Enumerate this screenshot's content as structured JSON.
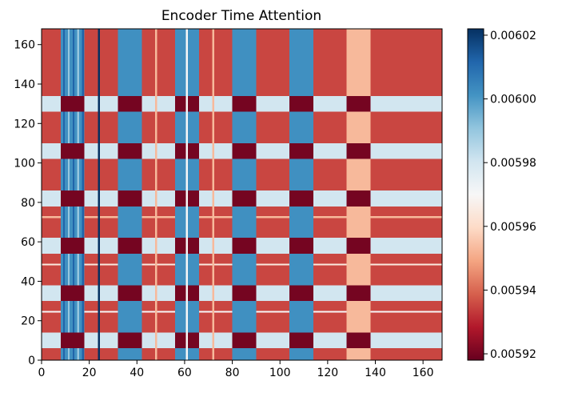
{
  "chart_data": {
    "type": "heatmap",
    "title": "Encoder Time Attention",
    "xlabel": "",
    "ylabel": "",
    "xlim": [
      0,
      168
    ],
    "ylim": [
      0,
      168
    ],
    "x_ticks": [
      "0",
      "20",
      "40",
      "60",
      "80",
      "100",
      "120",
      "140",
      "160"
    ],
    "y_ticks": [
      "0",
      "20",
      "40",
      "60",
      "80",
      "100",
      "120",
      "140",
      "160"
    ],
    "colormap": "RdBu",
    "colorbar": {
      "range": [
        0.005918,
        0.006022
      ],
      "ticks": [
        "0.00592",
        "0.00594",
        "0.00596",
        "0.00598",
        "0.00600",
        "0.00602"
      ]
    },
    "background_value": 0.005935,
    "column_bands": [
      {
        "x": [
          8,
          18
        ],
        "value": 0.006002,
        "pattern": "striped"
      },
      {
        "x": [
          32,
          42
        ],
        "value": 0.006002
      },
      {
        "x": [
          56,
          66
        ],
        "value": 0.006002
      },
      {
        "x": [
          80,
          90
        ],
        "value": 0.006002
      },
      {
        "x": [
          104,
          114
        ],
        "value": 0.006002
      },
      {
        "x": [
          128,
          138
        ],
        "value": 0.005953
      }
    ],
    "row_bands": [
      {
        "y": [
          6,
          14
        ],
        "value": 0.00598
      },
      {
        "y": [
          30,
          38
        ],
        "value": 0.00598
      },
      {
        "y": [
          54,
          62
        ],
        "value": 0.00598
      },
      {
        "y": [
          78,
          86
        ],
        "value": 0.00598
      },
      {
        "y": [
          102,
          110
        ],
        "value": 0.00598
      },
      {
        "y": [
          126,
          134
        ],
        "value": 0.00598
      }
    ],
    "intersection_value": 0.00592,
    "thin_columns": [
      {
        "x": 24,
        "value": 0.006022
      },
      {
        "x": 48,
        "value": 0.005953
      },
      {
        "x": 61,
        "value": 0.00597
      },
      {
        "x": 72,
        "value": 0.005953
      }
    ],
    "thin_rows": [
      {
        "y": 24.5,
        "value": 0.00597
      },
      {
        "y": 48.5,
        "value": 0.005965
      },
      {
        "y": 72.5,
        "value": 0.005953
      }
    ]
  }
}
